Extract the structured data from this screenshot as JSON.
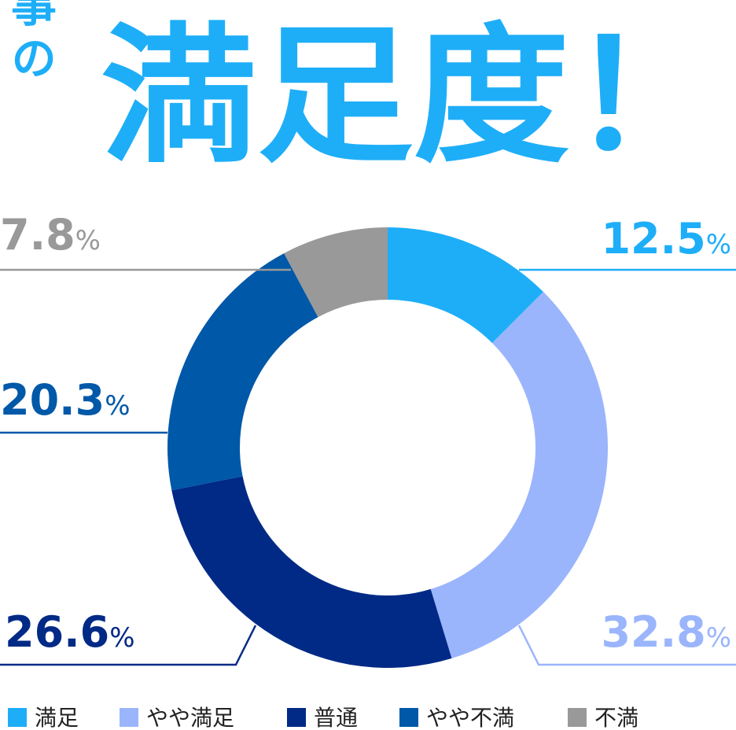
{
  "chart_data": {
    "type": "pie",
    "donut": true,
    "title_lead": "仕事の",
    "title": "満足度！",
    "categories": [
      "満足",
      "やや満足",
      "普通",
      "やや不満",
      "不満"
    ],
    "values": [
      12.5,
      32.8,
      26.6,
      20.3,
      7.8
    ],
    "value_labels": [
      "12.5%",
      "32.8%",
      "26.6%",
      "20.3%",
      "7.8%"
    ],
    "colors": [
      "#1eaef8",
      "#9ab5fc",
      "#002a86",
      "#0058a8",
      "#999999"
    ],
    "legend": "bottom"
  }
}
